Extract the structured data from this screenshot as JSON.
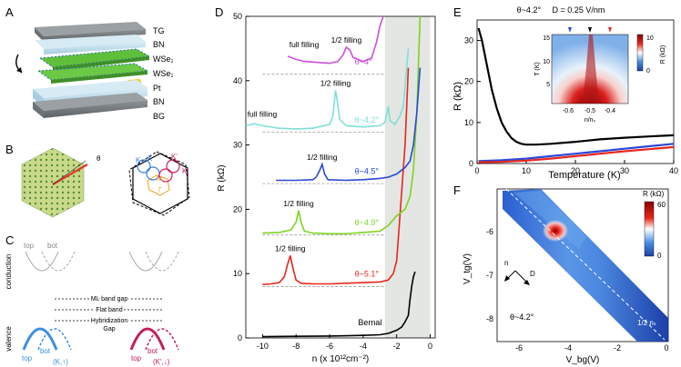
{
  "panels": {
    "A": {
      "letter": "A",
      "layers": [
        "TG",
        "BN",
        "WSe₂",
        "WSe₂",
        "Pt",
        "BN",
        "BG"
      ]
    },
    "B": {
      "letter": "B",
      "angle": "θ",
      "k_labels": [
        "K",
        "K",
        "K'",
        "K'"
      ],
      "m_label": "M",
      "gamma_label": "Γ"
    },
    "C": {
      "letter": "C",
      "row_labels": [
        "conduction",
        "valence"
      ],
      "band_labels": [
        "top",
        "bot",
        "top",
        "bot"
      ],
      "legend": [
        "ML band gap",
        "Flat band",
        "Hybridization",
        "Gap"
      ],
      "valley_labels": [
        "(K,↑)",
        "(K',↓)"
      ]
    },
    "D": {
      "letter": "D",
      "xlabel": "n (x 10¹²cm⁻²)",
      "ylabel": "R (kΩ)"
    },
    "E": {
      "letter": "E",
      "header": "θ~4.2°     D = 0.25 V/nm",
      "xlabel": "Temperature (K)",
      "ylabel": "R (kΩ)",
      "inset_xlabel": "n/nₛ",
      "inset_ylabel": "T (K)",
      "inset_cbar_label": "R (kΩ)",
      "inset_cbar_ticks": [
        "10",
        "0"
      ],
      "inset_xticks": [
        "-0.6",
        "-0.5",
        "-0.4"
      ],
      "inset_yticks": [
        "15",
        "10",
        "5"
      ]
    },
    "F": {
      "letter": "F",
      "xlabel": "V_bg(V)",
      "ylabel": "V_tg(V)",
      "cbar_label": "R (kΩ)",
      "cbar_ticks": [
        "60",
        "0"
      ],
      "angle_label": "θ~4.2°",
      "n_label": "n",
      "D_label": "D",
      "half_label": "1/2 nₛ",
      "xticks": [
        "-6",
        "-4",
        "-2",
        "0"
      ],
      "yticks": [
        "-6",
        "-7",
        "-8"
      ]
    }
  },
  "chart_data": [
    {
      "id": "D",
      "type": "line",
      "title": "",
      "xlabel": "n (x 10¹²cm⁻²)",
      "ylabel": "R (kΩ)",
      "xlim": [
        -11,
        0.3
      ],
      "ylim": [
        0,
        50
      ],
      "xticks": [
        -10,
        -8,
        -6,
        -4,
        -2,
        0
      ],
      "yticks": [
        0,
        10,
        20,
        30,
        40,
        50
      ],
      "shaded_region": [
        -2.7,
        0
      ],
      "series": [
        {
          "name": "Bernal",
          "label": "Bernal",
          "color": "#000000",
          "offset": 0,
          "peak_label": "",
          "points": [
            [
              -10,
              0.2
            ],
            [
              -8,
              0.25
            ],
            [
              -6,
              0.3
            ],
            [
              -4,
              0.4
            ],
            [
              -3,
              0.5
            ],
            [
              -2.5,
              0.7
            ],
            [
              -2,
              1.2
            ],
            [
              -1.7,
              1.7
            ],
            [
              -1.5,
              2.5
            ],
            [
              -1.3,
              3.5
            ],
            [
              -1.2,
              6
            ],
            [
              -1.1,
              8
            ],
            [
              -1.0,
              9.5
            ],
            [
              -0.9,
              10.3
            ]
          ]
        },
        {
          "name": "θ~5.1°",
          "label": "θ~5.1°",
          "color": "#e8261c",
          "offset": 8,
          "peak_label": "1/2 filling",
          "points": [
            [
              -10,
              8.3
            ],
            [
              -9.5,
              8.4
            ],
            [
              -9,
              8.6
            ],
            [
              -8.7,
              9.5
            ],
            [
              -8.5,
              11.5
            ],
            [
              -8.35,
              12.8
            ],
            [
              -8.2,
              11
            ],
            [
              -8.0,
              9
            ],
            [
              -7.7,
              8.5
            ],
            [
              -7,
              8.4
            ],
            [
              -6,
              8.4
            ],
            [
              -5,
              8.5
            ],
            [
              -4,
              8.6
            ],
            [
              -3,
              8.7
            ],
            [
              -2.5,
              9
            ],
            [
              -2.2,
              10
            ],
            [
              -2.0,
              12
            ],
            [
              -1.8,
              19
            ],
            [
              -1.5,
              30
            ],
            [
              -1.3,
              42
            ]
          ]
        },
        {
          "name": "θ~4.9°",
          "label": "θ~4.9°",
          "color": "#7ed321",
          "offset": 16,
          "peak_label": "1/2 filling",
          "points": [
            [
              -10,
              16.3
            ],
            [
              -9,
              16.4
            ],
            [
              -8.3,
              16.8
            ],
            [
              -8.0,
              18
            ],
            [
              -7.85,
              19.8
            ],
            [
              -7.7,
              18
            ],
            [
              -7.5,
              16.6
            ],
            [
              -7,
              16.3
            ],
            [
              -6,
              16.2
            ],
            [
              -5,
              16.2
            ],
            [
              -4,
              16.4
            ],
            [
              -3,
              16.6
            ],
            [
              -2.5,
              17.5
            ],
            [
              -2.0,
              19
            ],
            [
              -1.5,
              20
            ],
            [
              -1.2,
              22
            ],
            [
              -1.0,
              26
            ],
            [
              -0.8,
              35
            ],
            [
              -0.6,
              50
            ]
          ]
        },
        {
          "name": "θ~4.5°",
          "label": "θ~4.5°",
          "color": "#2b48d8",
          "offset": 24,
          "peak_label": "1/2 filling",
          "points": [
            [
              -9.2,
              24.5
            ],
            [
              -8,
              24.5
            ],
            [
              -7,
              24.6
            ],
            [
              -6.8,
              25
            ],
            [
              -6.6,
              26
            ],
            [
              -6.45,
              27
            ],
            [
              -6.3,
              25.5
            ],
            [
              -6.1,
              24.6
            ],
            [
              -5,
              24.5
            ],
            [
              -4,
              24.6
            ],
            [
              -3,
              24.8
            ],
            [
              -2.5,
              25
            ],
            [
              -2,
              25.5
            ],
            [
              -1.5,
              26.5
            ],
            [
              -1.2,
              27.5
            ],
            [
              -1.0,
              30
            ],
            [
              -0.8,
              35
            ],
            [
              -0.6,
              42
            ]
          ]
        },
        {
          "name": "θ~4.2°",
          "label": "θ~4.2°",
          "color": "#7fe0d6",
          "offset": 32,
          "peak_label": "1/2 filling",
          "peak2_label": "full filling",
          "points": [
            [
              -11,
              33
            ],
            [
              -10.5,
              33.3
            ],
            [
              -10,
              33
            ],
            [
              -9,
              32.6
            ],
            [
              -8,
              32.5
            ],
            [
              -7,
              32.6
            ],
            [
              -6,
              33.2
            ],
            [
              -5.8,
              34.5
            ],
            [
              -5.65,
              38.5
            ],
            [
              -5.55,
              37
            ],
            [
              -5.4,
              34
            ],
            [
              -5,
              33
            ],
            [
              -4,
              32.8
            ],
            [
              -3,
              33
            ],
            [
              -2.7,
              33.5
            ],
            [
              -2.5,
              36
            ],
            [
              -2.4,
              33.8
            ],
            [
              -2.1,
              33.2
            ],
            [
              -1.8,
              34.5
            ],
            [
              -1.6,
              36
            ],
            [
              -1.3,
              45
            ]
          ]
        },
        {
          "name": "θ~4°",
          "label": "θ~4°",
          "color": "#cc4fd8",
          "offset": 41,
          "peak_label": "1/2 filling",
          "peak2_label": "full filling",
          "points": [
            [
              -8.5,
              43.8
            ],
            [
              -8,
              43.3
            ],
            [
              -7.5,
              43
            ],
            [
              -7,
              42.9
            ],
            [
              -6,
              42.7
            ],
            [
              -5.5,
              43
            ],
            [
              -5.2,
              44
            ],
            [
              -5.0,
              45.2
            ],
            [
              -4.8,
              44.8
            ],
            [
              -4.6,
              43.6
            ],
            [
              -4,
              43
            ],
            [
              -3.5,
              43.5
            ],
            [
              -3.2,
              46
            ],
            [
              -3.0,
              48.5
            ],
            [
              -2.8,
              50
            ]
          ]
        }
      ]
    },
    {
      "id": "E",
      "type": "line",
      "title": "θ~4.2°     D = 0.25 V/nm",
      "xlabel": "Temperature (K)",
      "ylabel": "R (kΩ)",
      "xlim": [
        0,
        40
      ],
      "ylim": [
        0,
        35
      ],
      "xticks": [
        0,
        10,
        20,
        30,
        40
      ],
      "yticks": [
        0,
        10,
        20,
        30
      ],
      "series": [
        {
          "name": "n/nₛ = -0.5",
          "color": "#000000",
          "points": [
            [
              0.3,
              33
            ],
            [
              1,
              30
            ],
            [
              2,
              24
            ],
            [
              3,
              18
            ],
            [
              4,
              13.5
            ],
            [
              5,
              10
            ],
            [
              6,
              7.8
            ],
            [
              7,
              6.2
            ],
            [
              8,
              5.3
            ],
            [
              9,
              4.8
            ],
            [
              10,
              4.6
            ],
            [
              12,
              4.6
            ],
            [
              15,
              4.8
            ],
            [
              20,
              5.3
            ],
            [
              25,
              5.9
            ],
            [
              30,
              6.3
            ],
            [
              35,
              6.6
            ],
            [
              40,
              6.9
            ]
          ]
        },
        {
          "name": "n/nₛ = -0.6",
          "color": "#2b48d8",
          "points": [
            [
              0.3,
              0.6
            ],
            [
              5,
              0.8
            ],
            [
              10,
              1.2
            ],
            [
              15,
              1.8
            ],
            [
              20,
              2.4
            ],
            [
              25,
              3
            ],
            [
              30,
              3.6
            ],
            [
              35,
              4.2
            ],
            [
              40,
              4.8
            ]
          ]
        },
        {
          "name": "n/nₛ = -0.4",
          "color": "#e8261c",
          "points": [
            [
              0.3,
              0.3
            ],
            [
              5,
              0.4
            ],
            [
              10,
              0.7
            ],
            [
              15,
              1.2
            ],
            [
              20,
              1.8
            ],
            [
              25,
              2.4
            ],
            [
              30,
              3
            ],
            [
              35,
              3.5
            ],
            [
              40,
              4
            ]
          ]
        }
      ]
    }
  ]
}
